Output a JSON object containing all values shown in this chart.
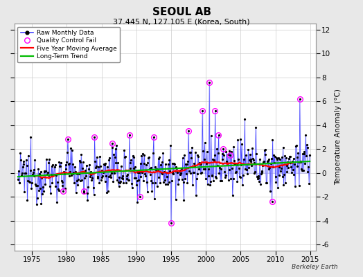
{
  "title": "SEOUL AB",
  "subtitle": "37.445 N, 127.105 E (Korea, South)",
  "credit": "Berkeley Earth",
  "ylabel": "Temperature Anomaly (°C)",
  "xlim": [
    1972.5,
    2015.8
  ],
  "ylim": [
    -6.5,
    12.5
  ],
  "yticks": [
    -6,
    -4,
    -2,
    0,
    2,
    4,
    6,
    8,
    10,
    12
  ],
  "xticks": [
    1975,
    1980,
    1985,
    1990,
    1995,
    2000,
    2005,
    2010,
    2015
  ],
  "background_color": "#e8e8e8",
  "plot_background": "#ffffff",
  "raw_line_color": "#4444ff",
  "raw_marker_color": "#000000",
  "qc_fail_color": "#ff00ff",
  "moving_avg_color": "#ff0000",
  "trend_color": "#00bb00",
  "fill_color": "#aaaaff",
  "seed": 12345
}
